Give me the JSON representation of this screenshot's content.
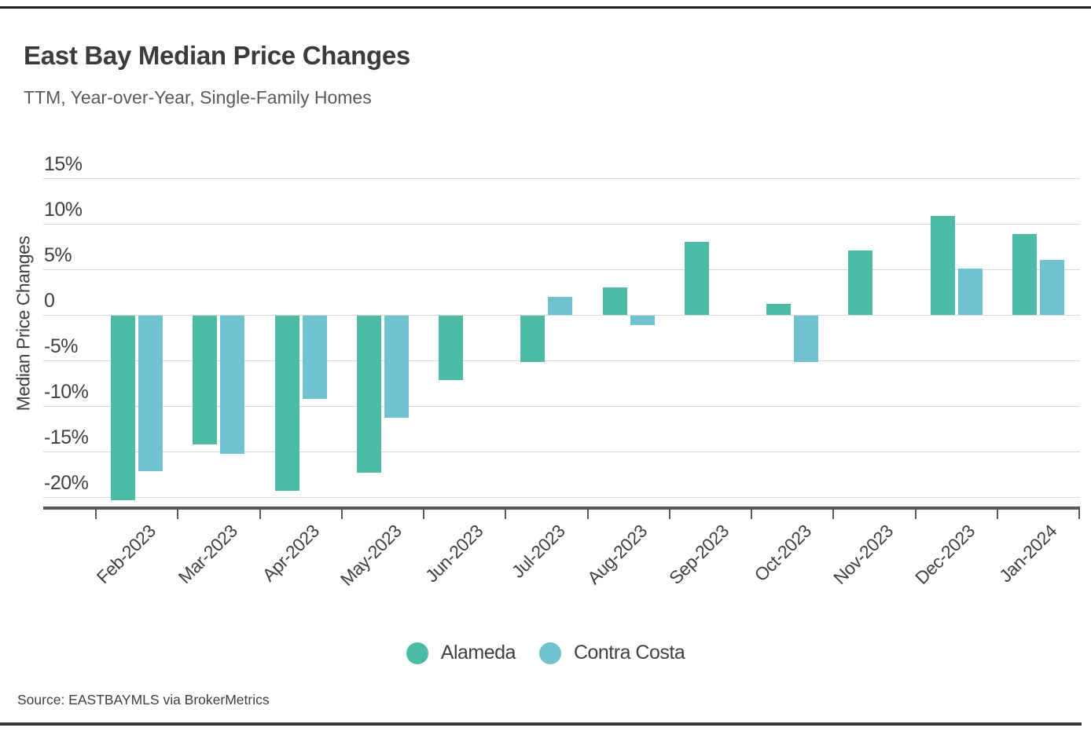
{
  "header": {
    "title": "East Bay Median Price Changes",
    "subtitle": "TTM, Year-over-Year, Single-Family Homes"
  },
  "chart_data": {
    "type": "bar",
    "title": "East Bay Median Price Changes",
    "subtitle": "TTM, Year-over-Year, Single-Family Homes",
    "ylabel": "Median Price Changes",
    "xlabel": "",
    "unit": "%",
    "grid": true,
    "legend_position": "bottom",
    "ylim": [
      -21.5,
      15
    ],
    "categories": [
      "Feb-2023",
      "Mar-2023",
      "Apr-2023",
      "May-2023",
      "Jun-2023",
      "Jul-2023",
      "Aug-2023",
      "Sep-2023",
      "Oct-2023",
      "Nov-2023",
      "Dec-2023",
      "Jan-2024"
    ],
    "series": [
      {
        "name": "Alameda",
        "color": "#4CBCA6",
        "values": [
          -20.3,
          -14.1,
          -19.2,
          -17.2,
          -7.1,
          -5.1,
          3.0,
          8.0,
          1.2,
          7.1,
          10.9,
          8.9
        ]
      },
      {
        "name": "Contra Costa",
        "color": "#6FC2CE",
        "values": [
          -17.1,
          -15.2,
          -9.1,
          -11.2,
          0,
          2.0,
          -1.0,
          0,
          -5.1,
          0,
          5.1,
          6.0
        ]
      }
    ],
    "yticks": [
      {
        "label": "15%",
        "value": 15
      },
      {
        "label": "10%",
        "value": 10
      },
      {
        "label": "5%",
        "value": 5
      },
      {
        "label": "0",
        "value": 0
      },
      {
        "label": "-5%",
        "value": -5
      },
      {
        "label": "-10%",
        "value": -10
      },
      {
        "label": "-15%",
        "value": -15
      },
      {
        "label": "-20%",
        "value": -20
      }
    ]
  },
  "palette": {
    "alameda": "#4CBCA6",
    "contra_costa": "#6FC2CE",
    "gridline": "#d9d9d9",
    "axis": "#595959",
    "text": "#404040",
    "rule": "#1f1f1f"
  },
  "footer": {
    "source": "Source:  EASTBAYMLS via BrokerMetrics"
  }
}
